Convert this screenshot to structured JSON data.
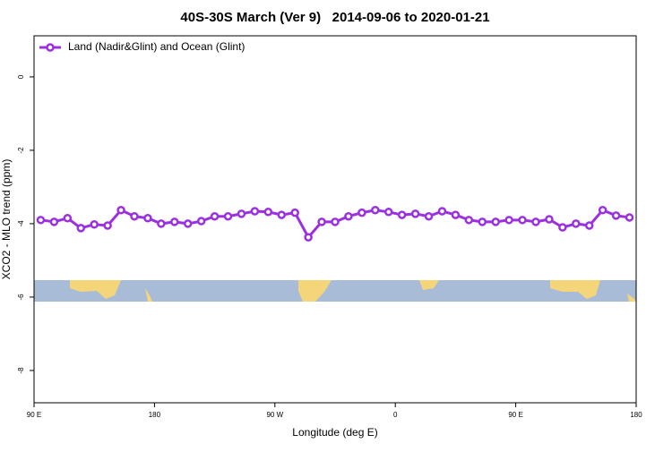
{
  "chart_data": {
    "type": "line",
    "title": "40S-30S March (Ver 9)   2014-09-06 to 2020-01-21",
    "xlabel": "Longitude (deg E)",
    "ylabel": "XCO2 - MLO trend (ppm)",
    "x": [
      95,
      105,
      115,
      125,
      135,
      145,
      155,
      165,
      175,
      185,
      195,
      205,
      215,
      225,
      235,
      245,
      255,
      265,
      275,
      285,
      295,
      305,
      315,
      325,
      335,
      345,
      355,
      365,
      375,
      385,
      395,
      405,
      415,
      425,
      435,
      445,
      455,
      465,
      475,
      485,
      495,
      505,
      515,
      525,
      535
    ],
    "series": [
      {
        "name": "Land (Nadir&Glint) and Ocean (Glint)",
        "color": "#9b30e0",
        "values": [
          -3.9,
          -3.95,
          -3.85,
          -4.12,
          -4.02,
          -4.05,
          -3.63,
          -3.8,
          -3.85,
          -4.0,
          -3.95,
          -4.0,
          -3.93,
          -3.8,
          -3.8,
          -3.73,
          -3.66,
          -3.68,
          -3.76,
          -3.7,
          -4.37,
          -3.95,
          -3.95,
          -3.8,
          -3.7,
          -3.63,
          -3.68,
          -3.76,
          -3.73,
          -3.8,
          -3.66,
          -3.76,
          -3.9,
          -3.95,
          -3.95,
          -3.9,
          -3.9,
          -3.95,
          -3.88,
          -4.1,
          -4.0,
          -4.05,
          -3.63,
          -3.78,
          -3.83
        ]
      }
    ],
    "xlim": [
      90,
      540
    ],
    "xticks": [
      {
        "value": 90,
        "label": "90 E"
      },
      180,
      {
        "value": 270,
        "label": "90 W"
      },
      {
        "value": 360,
        "label": "0"
      },
      {
        "value": 450,
        "label": "90 E"
      },
      {
        "value": 540,
        "label": "180"
      }
    ],
    "ylim": [
      -8.88,
      1.12
    ],
    "yticks": [
      0,
      -2,
      -4,
      -6,
      -8
    ],
    "legend": "top-left"
  }
}
